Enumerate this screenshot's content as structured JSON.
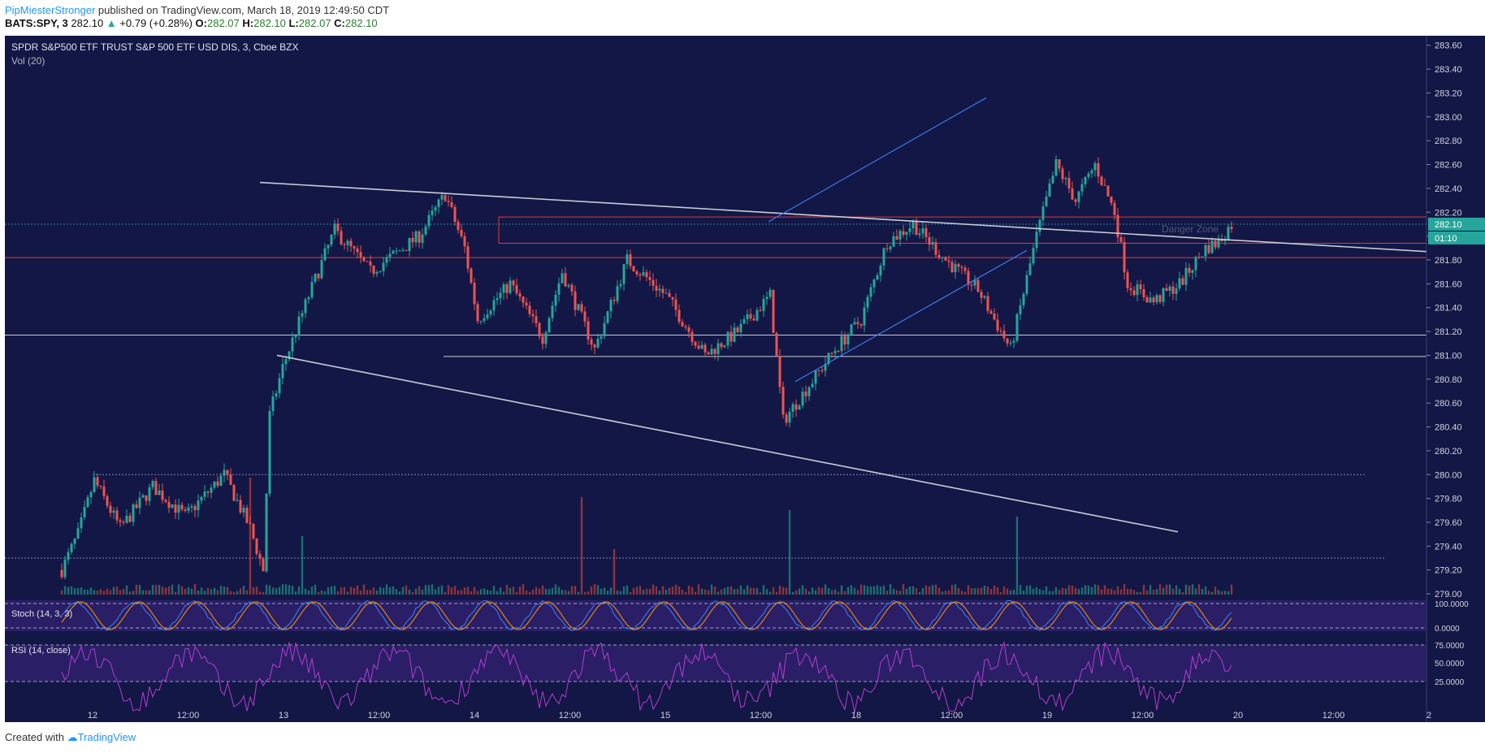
{
  "header": {
    "author": "PipMiesterStronger",
    "published": "published on TradingView.com, March 18, 2019 12:49:50 CDT",
    "symbol": "BATS:SPY, 3",
    "price": "282.10",
    "change_arrow": "▲",
    "change": "+0.79 (+0.28%)",
    "o_label": "O:",
    "o_val": "282.07",
    "h_label": "H:",
    "h_val": "282.10",
    "l_label": "L:",
    "l_val": "282.07",
    "c_label": "C:",
    "c_val": "282.10"
  },
  "footer": {
    "created_with": "Created with",
    "brand": "TradingView"
  },
  "chart_data": {
    "type": "candlestick",
    "title": "SPDR S&P500 ETF TRUST S&P 500 ETF USD DIS, 3, Cboe BZX",
    "volume_label": "Vol (20)",
    "price_axis": {
      "ticks": [
        "283.60",
        "283.40",
        "283.20",
        "283.00",
        "282.80",
        "282.60",
        "282.40",
        "282.20",
        "282.00",
        "281.80",
        "281.60",
        "281.40",
        "281.20",
        "281.00",
        "280.80",
        "280.60",
        "280.40",
        "280.20",
        "280.00",
        "279.80",
        "279.60",
        "279.40",
        "279.20",
        "279.00"
      ],
      "range": [
        278.98,
        283.68
      ]
    },
    "current_price": "282.10",
    "countdown": "01:10",
    "time_axis": [
      "12",
      "12:00",
      "13",
      "12:00",
      "14",
      "12:00",
      "15",
      "12:00",
      "18",
      "12:00",
      "19",
      "12:00",
      "20",
      "12:00",
      "2"
    ],
    "price_path": [
      [
        0,
        279.2
      ],
      [
        5,
        279.5
      ],
      [
        10,
        279.95
      ],
      [
        18,
        279.55
      ],
      [
        28,
        279.9
      ],
      [
        38,
        279.65
      ],
      [
        50,
        280.0
      ],
      [
        58,
        279.55
      ],
      [
        62,
        279.2
      ],
      [
        64,
        280.5
      ],
      [
        68,
        280.9
      ],
      [
        76,
        281.5
      ],
      [
        84,
        282.05
      ],
      [
        95,
        281.7
      ],
      [
        110,
        282.0
      ],
      [
        118,
        282.35
      ],
      [
        124,
        281.9
      ],
      [
        128,
        281.3
      ],
      [
        138,
        281.6
      ],
      [
        148,
        281.15
      ],
      [
        154,
        281.7
      ],
      [
        164,
        281.05
      ],
      [
        174,
        281.8
      ],
      [
        186,
        281.5
      ],
      [
        198,
        281.0
      ],
      [
        208,
        281.2
      ],
      [
        218,
        281.5
      ],
      [
        222,
        280.45
      ],
      [
        230,
        280.75
      ],
      [
        238,
        281.05
      ],
      [
        246,
        281.3
      ],
      [
        254,
        281.95
      ],
      [
        262,
        282.1
      ],
      [
        272,
        281.8
      ],
      [
        282,
        281.55
      ],
      [
        292,
        281.05
      ],
      [
        300,
        282.0
      ],
      [
        306,
        282.6
      ],
      [
        312,
        282.3
      ],
      [
        318,
        282.6
      ],
      [
        324,
        282.2
      ],
      [
        328,
        281.6
      ],
      [
        336,
        281.45
      ],
      [
        344,
        281.6
      ],
      [
        352,
        281.9
      ],
      [
        356,
        281.95
      ],
      [
        360,
        282.1
      ]
    ],
    "volume_spikes": [
      [
        58,
        0.9
      ],
      [
        74,
        0.45
      ],
      [
        160,
        0.75
      ],
      [
        170,
        0.35
      ],
      [
        224,
        0.65
      ],
      [
        294,
        0.6
      ]
    ],
    "annotations": {
      "zone_label": "Danger Zone"
    },
    "stoch": {
      "label": "Stoch (14, 3, 3)",
      "ticks": [
        "100.0000",
        "0.0000"
      ]
    },
    "rsi": {
      "label": "RSI (14, close)",
      "ticks": [
        "75.0000",
        "50.0000",
        "25.0000"
      ]
    },
    "colors": {
      "background": "#131745",
      "up": "#26a69a",
      "down": "#ef5350",
      "line": "#c9ccd6",
      "channel": "#3b82f6",
      "zone": "#e53935",
      "indicator_bg": "#2a1f66",
      "rsi": "#b43ccf"
    }
  }
}
